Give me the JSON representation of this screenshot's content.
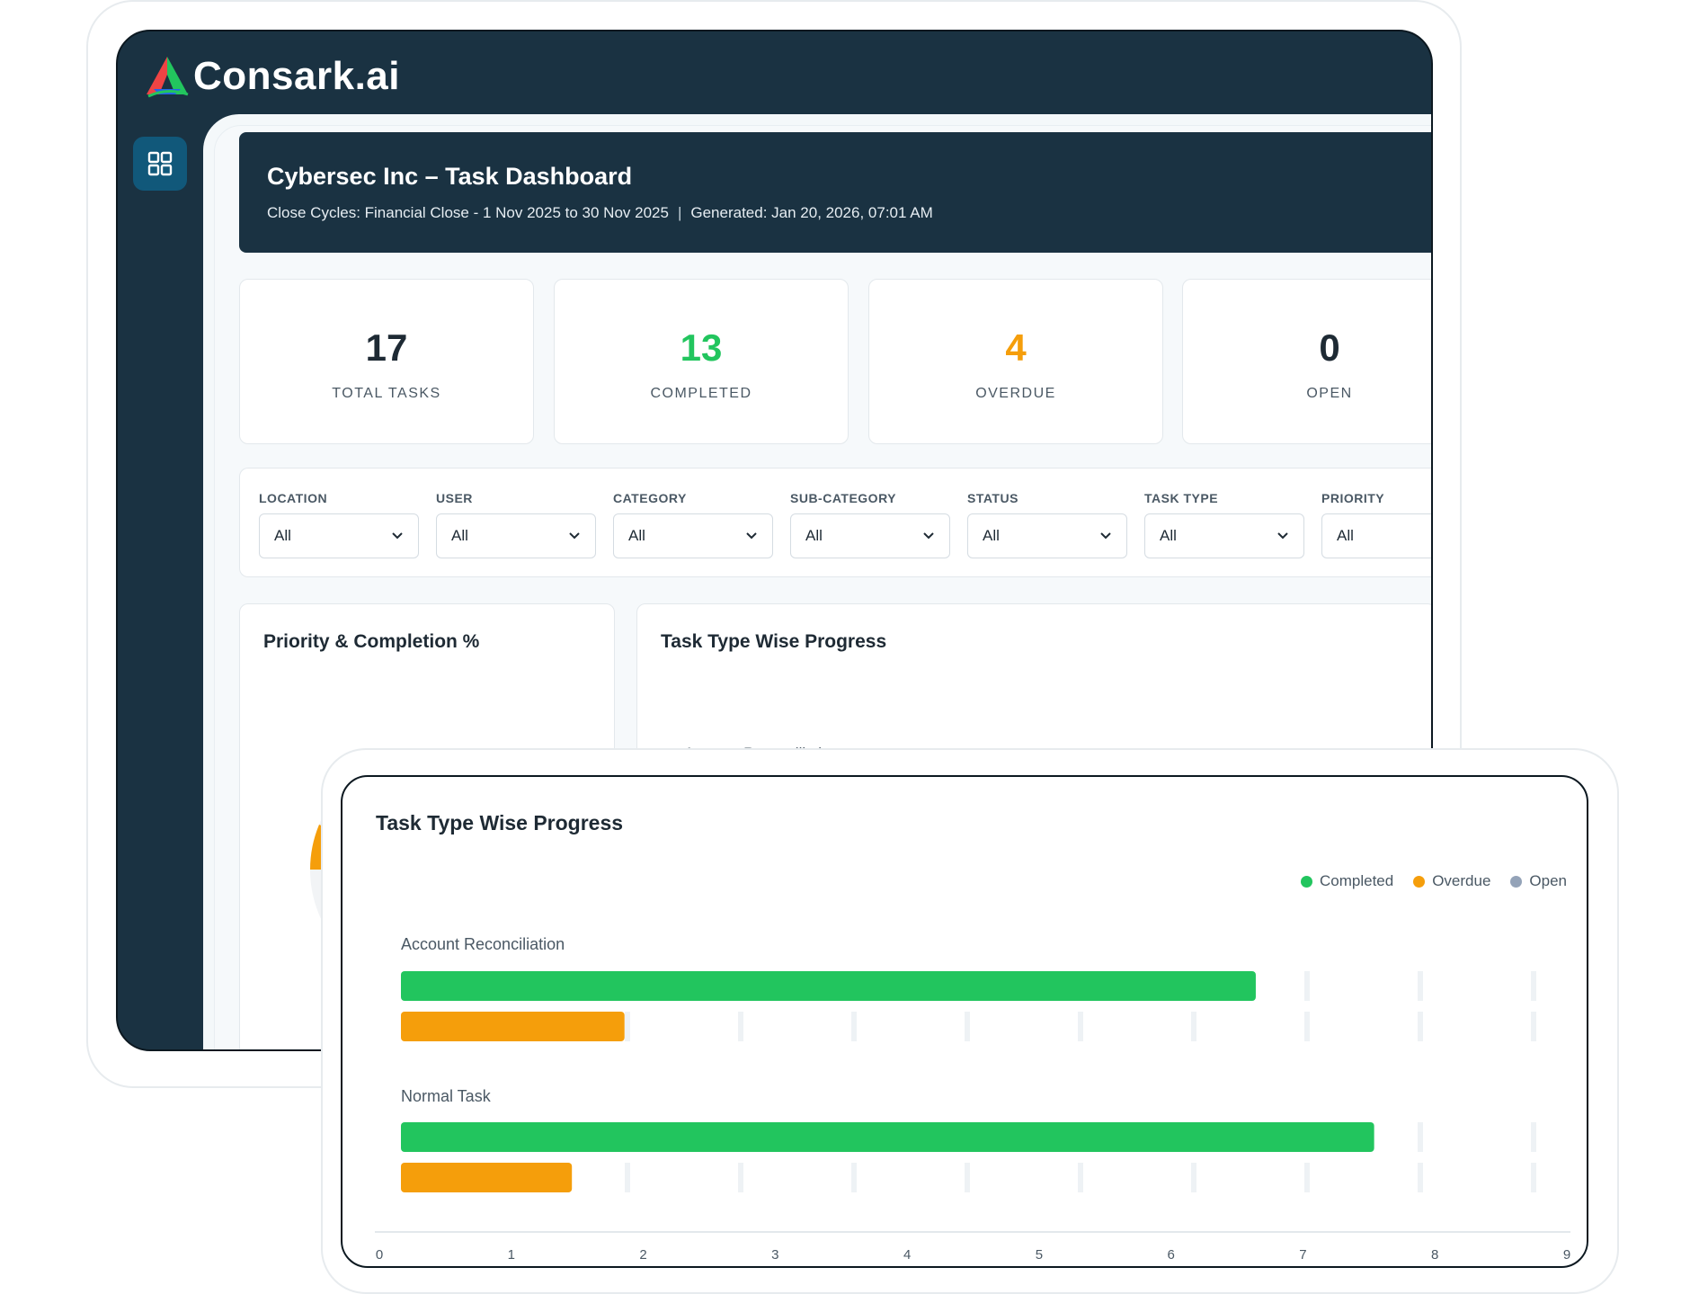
{
  "app": {
    "logo_text": "Consark.ai"
  },
  "header": {
    "title": "Cybersec Inc – Task Dashboard",
    "close_cycles": "Close Cycles: Financial Close - 1 Nov 2025 to 30 Nov 2025",
    "separator": "|",
    "generated": "Generated: Jan 20, 2026, 07:01 AM"
  },
  "stats": [
    {
      "value": "17",
      "label": "TOTAL TASKS",
      "color": "#1e2a34"
    },
    {
      "value": "13",
      "label": "COMPLETED",
      "color": "#22c55e"
    },
    {
      "value": "4",
      "label": "OVERDUE",
      "color": "#f59e0b"
    },
    {
      "value": "0",
      "label": "OPEN",
      "color": "#1e2a34"
    }
  ],
  "filters": [
    {
      "label": "LOCATION",
      "value": "All"
    },
    {
      "label": "USER",
      "value": "All"
    },
    {
      "label": "CATEGORY",
      "value": "All"
    },
    {
      "label": "SUB-CATEGORY",
      "value": "All"
    },
    {
      "label": "STATUS",
      "value": "All"
    },
    {
      "label": "TASK TYPE",
      "value": "All"
    },
    {
      "label": "PRIORITY",
      "value": "All"
    }
  ],
  "panels": {
    "priority_title": "Priority & Completion %",
    "task_type_title": "Task Type Wise Progress",
    "task_type_first_label": "Account Reconciliation"
  },
  "colors": {
    "completed": "#22c55e",
    "overdue": "#f59e0b",
    "open": "#94a3b8",
    "navy": "#1a3242"
  },
  "chart_data": {
    "type": "bar",
    "orientation": "horizontal",
    "title": "Task Type Wise Progress",
    "categories": [
      "Account Reconciliation",
      "Normal Task"
    ],
    "series": [
      {
        "name": "Completed",
        "values": [
          6.5,
          7.4
        ],
        "color": "#22c55e"
      },
      {
        "name": "Overdue",
        "values": [
          1.7,
          1.3
        ],
        "color": "#f59e0b"
      },
      {
        "name": "Open",
        "values": [
          0,
          0
        ],
        "color": "#94a3b8"
      }
    ],
    "x_ticks": [
      "0",
      "1",
      "2",
      "3",
      "4",
      "5",
      "6",
      "7",
      "8",
      "9"
    ],
    "xlim": [
      0,
      9
    ],
    "legend_position": "top-right"
  }
}
